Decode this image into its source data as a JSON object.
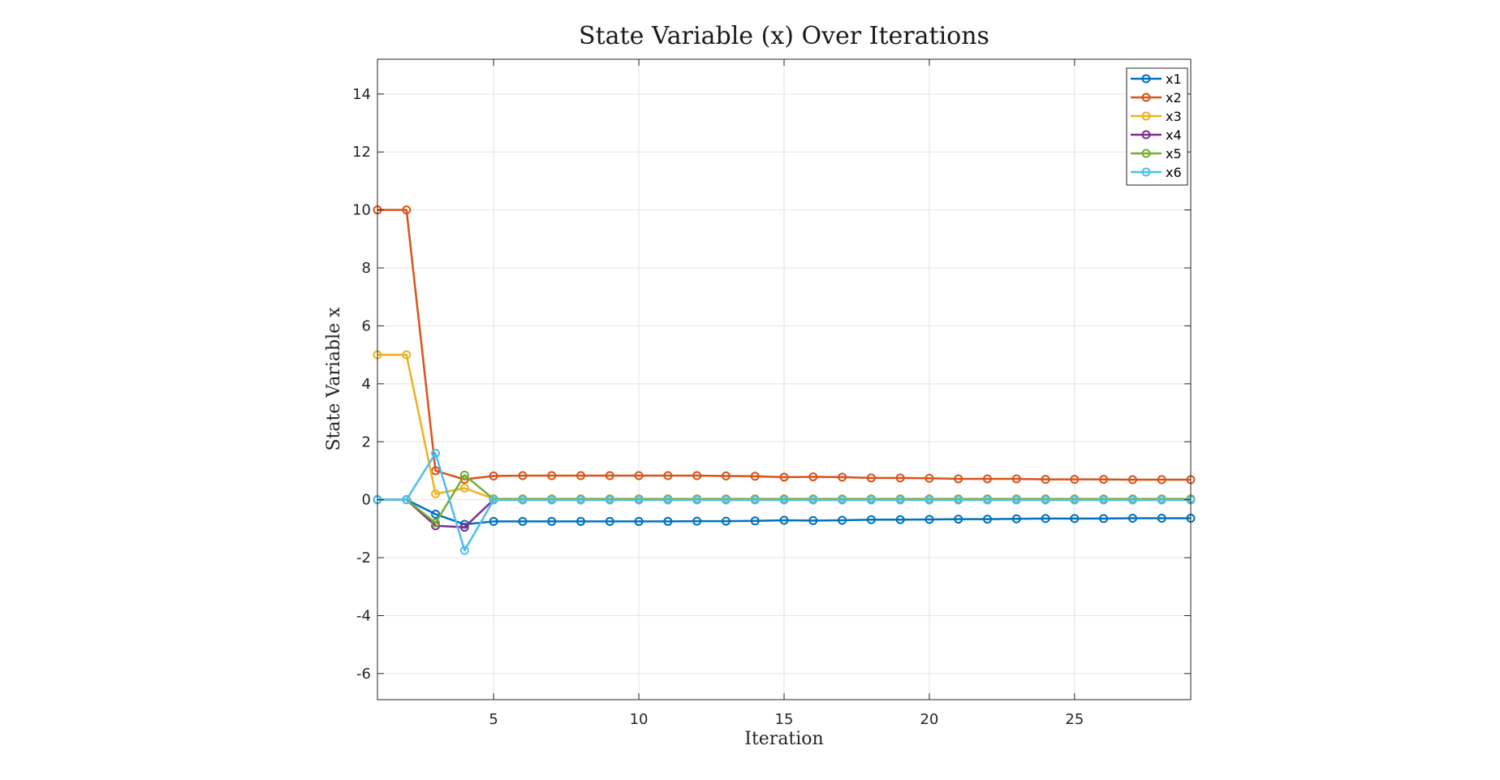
{
  "chart_data": {
    "type": "line",
    "title": "State Variable (x) Over Iterations",
    "xlabel": "Iteration",
    "ylabel": "State Variable x",
    "xlim": [
      1,
      29
    ],
    "ylim": [
      -6.9,
      15.2
    ],
    "xticks": [
      5,
      10,
      15,
      20,
      25
    ],
    "yticks": [
      -6,
      -4,
      -2,
      0,
      2,
      4,
      6,
      8,
      10,
      12,
      14
    ],
    "grid": true,
    "legend_position": "top-right",
    "x": [
      1,
      2,
      3,
      4,
      5,
      6,
      7,
      8,
      9,
      10,
      11,
      12,
      13,
      14,
      15,
      16,
      17,
      18,
      19,
      20,
      21,
      22,
      23,
      24,
      25,
      26,
      27,
      28,
      29
    ],
    "series": [
      {
        "name": "x1",
        "color": "#0072BD",
        "values": [
          0,
          0,
          -0.5,
          -0.85,
          -0.75,
          -0.75,
          -0.75,
          -0.75,
          -0.75,
          -0.75,
          -0.75,
          -0.74,
          -0.74,
          -0.73,
          -0.71,
          -0.72,
          -0.71,
          -0.69,
          -0.69,
          -0.68,
          -0.67,
          -0.67,
          -0.66,
          -0.65,
          -0.65,
          -0.65,
          -0.64,
          -0.64,
          -0.64
        ]
      },
      {
        "name": "x2",
        "color": "#D95319",
        "values": [
          10,
          10,
          1.0,
          0.7,
          0.82,
          0.83,
          0.83,
          0.83,
          0.83,
          0.83,
          0.83,
          0.83,
          0.82,
          0.81,
          0.78,
          0.79,
          0.78,
          0.75,
          0.75,
          0.74,
          0.72,
          0.72,
          0.72,
          0.7,
          0.7,
          0.7,
          0.69,
          0.69,
          0.69
        ]
      },
      {
        "name": "x3",
        "color": "#EDB120",
        "values": [
          5,
          5,
          0.2,
          0.4,
          0.03,
          0.03,
          0.03,
          0.03,
          0.03,
          0.03,
          0.03,
          0.03,
          0.03,
          0.03,
          0.03,
          0.03,
          0.03,
          0.03,
          0.03,
          0.03,
          0.03,
          0.03,
          0.03,
          0.03,
          0.03,
          0.03,
          0.03,
          0.03,
          0.03
        ]
      },
      {
        "name": "x4",
        "color": "#7E2F8E",
        "values": [
          0,
          0,
          -0.9,
          -0.95,
          0,
          0,
          0,
          0,
          0,
          0,
          0,
          0,
          0,
          0,
          0,
          0,
          0,
          0,
          0,
          0,
          0,
          0,
          0,
          0,
          0,
          0,
          0,
          0,
          0
        ]
      },
      {
        "name": "x5",
        "color": "#77AC30",
        "values": [
          0,
          0,
          -0.8,
          0.85,
          0.02,
          0.02,
          0.02,
          0.02,
          0.02,
          0.02,
          0.02,
          0.02,
          0.02,
          0.02,
          0.02,
          0.02,
          0.02,
          0.02,
          0.02,
          0.02,
          0.02,
          0.02,
          0.02,
          0.02,
          0.02,
          0.02,
          0.02,
          0.02,
          0.02
        ]
      },
      {
        "name": "x6",
        "color": "#4DBEEE",
        "values": [
          0,
          0,
          1.6,
          -1.75,
          -0.01,
          -0.01,
          -0.01,
          -0.01,
          -0.01,
          -0.01,
          -0.01,
          -0.01,
          -0.01,
          -0.01,
          -0.01,
          -0.01,
          -0.01,
          -0.01,
          -0.01,
          -0.01,
          -0.01,
          -0.01,
          -0.01,
          -0.01,
          -0.01,
          -0.01,
          -0.01,
          -0.01,
          -0.01
        ]
      }
    ]
  }
}
